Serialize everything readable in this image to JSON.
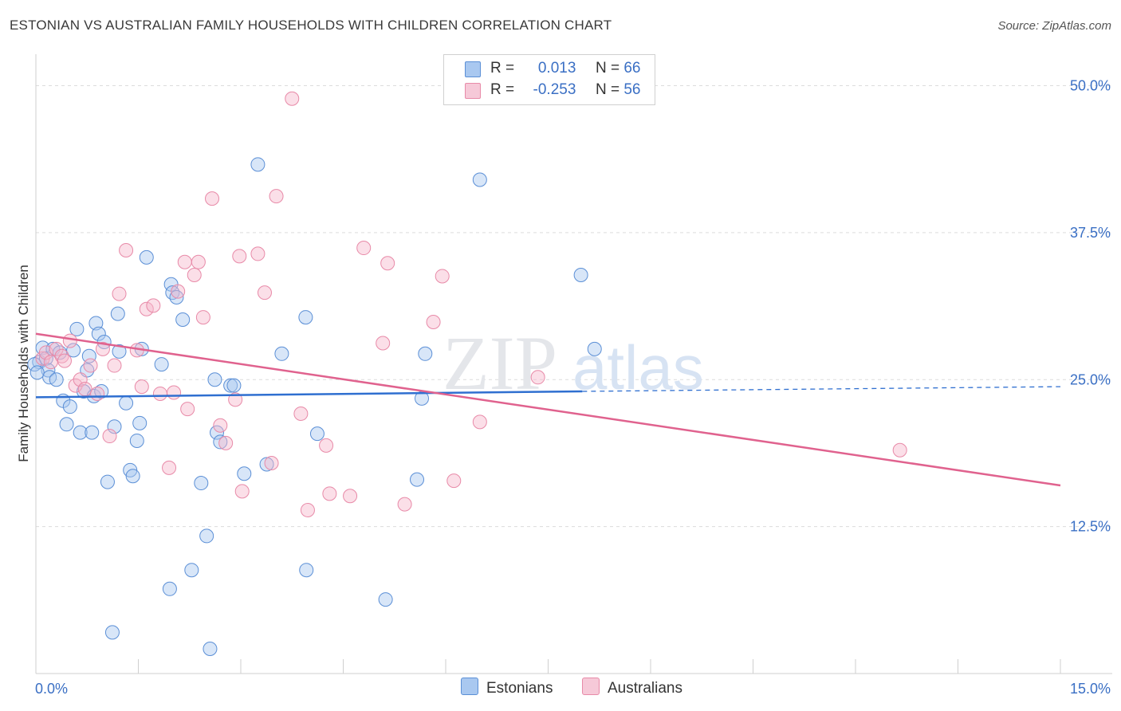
{
  "title": "ESTONIAN VS AUSTRALIAN FAMILY HOUSEHOLDS WITH CHILDREN CORRELATION CHART",
  "source": "Source: ZipAtlas.com",
  "watermark": {
    "zip": "ZIP",
    "atlas": "atlas"
  },
  "legend": {
    "estonians": {
      "r_label": "R =",
      "r_value": "0.013",
      "n_label": "N =",
      "n_value": "66"
    },
    "australians": {
      "r_label": "R =",
      "r_value": "-0.253",
      "n_label": "N =",
      "n_value": "56"
    }
  },
  "bottom_legend": {
    "estonians": "Estonians",
    "australians": "Australians"
  },
  "colors": {
    "estonian_fill": "#a9c8f0",
    "estonian_stroke": "#5b8fd6",
    "estonian_line": "#2f6fd0",
    "australian_fill": "#f6b7cb",
    "australian_stroke": "#e88aa8",
    "australian_line": "#e0628e",
    "tick_label": "#3a6fc4",
    "grid": "#dcdcdc"
  },
  "chart_data": {
    "type": "scatter",
    "title": "ESTONIAN VS AUSTRALIAN FAMILY HOUSEHOLDS WITH CHILDREN CORRELATION CHART",
    "xlabel": "",
    "ylabel": "Family Households with Children",
    "xlim": [
      0,
      15
    ],
    "ylim": [
      0,
      52
    ],
    "x_tick_labels": [
      "0.0%",
      "15.0%"
    ],
    "y_ticks": [
      12.5,
      25.0,
      37.5,
      50.0
    ],
    "y_tick_labels": [
      "12.5%",
      "25.0%",
      "37.5%",
      "50.0%"
    ],
    "series": [
      {
        "name": "Estonians",
        "r": 0.013,
        "n": 66,
        "trend": {
          "x0": 0.0,
          "y0": 23.5,
          "x1": 8.0,
          "y1": 24.0,
          "x_dash_end": 15.0,
          "y_dash_end": 24.4
        },
        "points": [
          [
            0.05,
            26.5
          ],
          [
            0.1,
            27.7
          ],
          [
            0.15,
            26.8
          ],
          [
            0.18,
            25.8
          ],
          [
            0.2,
            25.2
          ],
          [
            0.25,
            27.6
          ],
          [
            0.3,
            25.0
          ],
          [
            0.35,
            27.3
          ],
          [
            0.4,
            23.2
          ],
          [
            0.45,
            21.2
          ],
          [
            0.5,
            22.7
          ],
          [
            0.55,
            27.5
          ],
          [
            0.6,
            29.3
          ],
          [
            0.65,
            20.5
          ],
          [
            0.7,
            24.0
          ],
          [
            0.75,
            25.8
          ],
          [
            0.78,
            27.0
          ],
          [
            0.82,
            20.5
          ],
          [
            0.85,
            23.6
          ],
          [
            0.88,
            29.8
          ],
          [
            0.92,
            28.9
          ],
          [
            0.96,
            24.0
          ],
          [
            1.0,
            28.2
          ],
          [
            1.05,
            16.3
          ],
          [
            1.12,
            3.5
          ],
          [
            1.15,
            21.0
          ],
          [
            1.2,
            30.6
          ],
          [
            1.22,
            27.4
          ],
          [
            1.32,
            23.0
          ],
          [
            1.38,
            17.3
          ],
          [
            1.42,
            16.8
          ],
          [
            1.48,
            19.8
          ],
          [
            1.52,
            21.3
          ],
          [
            1.55,
            27.6
          ],
          [
            1.62,
            35.4
          ],
          [
            1.84,
            26.3
          ],
          [
            1.96,
            7.2
          ],
          [
            1.98,
            33.1
          ],
          [
            2.0,
            32.4
          ],
          [
            2.06,
            32.0
          ],
          [
            2.15,
            30.1
          ],
          [
            2.28,
            8.8
          ],
          [
            2.42,
            16.2
          ],
          [
            2.5,
            11.7
          ],
          [
            2.55,
            2.1
          ],
          [
            2.62,
            25.0
          ],
          [
            2.65,
            20.5
          ],
          [
            2.7,
            19.7
          ],
          [
            2.85,
            24.5
          ],
          [
            2.9,
            24.5
          ],
          [
            3.05,
            17.0
          ],
          [
            3.25,
            43.3
          ],
          [
            3.38,
            17.8
          ],
          [
            3.6,
            27.2
          ],
          [
            3.95,
            30.3
          ],
          [
            3.96,
            8.8
          ],
          [
            4.12,
            20.4
          ],
          [
            5.12,
            6.3
          ],
          [
            5.58,
            16.5
          ],
          [
            5.65,
            23.4
          ],
          [
            5.7,
            27.2
          ],
          [
            6.5,
            42.0
          ],
          [
            7.98,
            33.9
          ],
          [
            8.18,
            27.6
          ],
          [
            -0.02,
            26.3
          ],
          [
            0.02,
            25.6
          ]
        ]
      },
      {
        "name": "Australians",
        "r": -0.253,
        "n": 56,
        "trend": {
          "x0": 0.0,
          "y0": 28.9,
          "x1": 15.0,
          "y1": 16.0
        },
        "points": [
          [
            0.1,
            26.8
          ],
          [
            0.15,
            27.3
          ],
          [
            0.22,
            26.5
          ],
          [
            0.3,
            27.6
          ],
          [
            0.38,
            27.0
          ],
          [
            0.42,
            26.6
          ],
          [
            0.5,
            28.3
          ],
          [
            0.58,
            24.5
          ],
          [
            0.65,
            25.0
          ],
          [
            0.72,
            24.2
          ],
          [
            0.8,
            26.2
          ],
          [
            0.9,
            23.8
          ],
          [
            0.98,
            27.6
          ],
          [
            1.08,
            20.2
          ],
          [
            1.15,
            26.2
          ],
          [
            1.22,
            32.3
          ],
          [
            1.32,
            36.0
          ],
          [
            1.48,
            27.5
          ],
          [
            1.55,
            24.4
          ],
          [
            1.62,
            31.0
          ],
          [
            1.72,
            31.3
          ],
          [
            1.82,
            23.8
          ],
          [
            1.95,
            17.5
          ],
          [
            2.02,
            23.9
          ],
          [
            2.08,
            32.5
          ],
          [
            2.18,
            35.0
          ],
          [
            2.22,
            22.5
          ],
          [
            2.32,
            33.9
          ],
          [
            2.38,
            35.0
          ],
          [
            2.45,
            30.3
          ],
          [
            2.58,
            40.4
          ],
          [
            2.7,
            21.1
          ],
          [
            2.78,
            19.6
          ],
          [
            2.92,
            23.3
          ],
          [
            2.98,
            35.5
          ],
          [
            3.02,
            15.5
          ],
          [
            3.25,
            35.7
          ],
          [
            3.35,
            32.4
          ],
          [
            3.45,
            17.9
          ],
          [
            3.52,
            40.6
          ],
          [
            3.75,
            48.9
          ],
          [
            3.88,
            22.1
          ],
          [
            3.98,
            13.9
          ],
          [
            4.25,
            19.4
          ],
          [
            4.3,
            15.3
          ],
          [
            4.6,
            15.1
          ],
          [
            4.8,
            36.2
          ],
          [
            5.08,
            28.1
          ],
          [
            5.15,
            34.9
          ],
          [
            5.4,
            14.4
          ],
          [
            5.82,
            29.9
          ],
          [
            5.95,
            33.8
          ],
          [
            6.12,
            16.4
          ],
          [
            6.5,
            21.4
          ],
          [
            7.35,
            25.2
          ],
          [
            12.65,
            19.0
          ]
        ]
      }
    ]
  }
}
